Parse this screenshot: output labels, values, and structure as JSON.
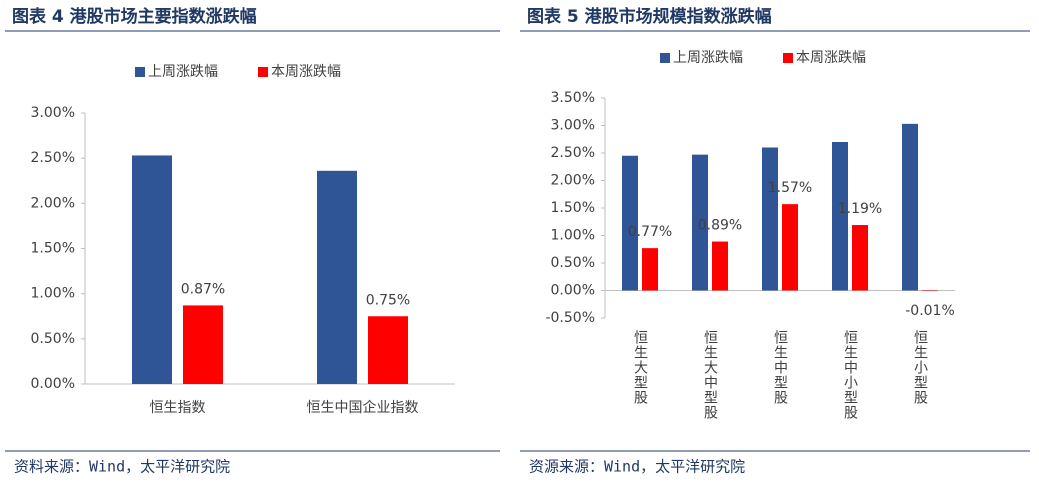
{
  "chart_data": [
    {
      "type": "bar",
      "title": "图表 4 港股市场主要指数涨跌幅",
      "categories": [
        "恒生指数",
        "恒生中国企业指数"
      ],
      "series": [
        {
          "name": "上周涨跌幅",
          "color": "#2f5597",
          "values": [
            2.53,
            2.36
          ]
        },
        {
          "name": "本周涨跌幅",
          "color": "#ff0000",
          "values": [
            0.87,
            0.75
          ],
          "value_labels": [
            "0.87%",
            "0.75%"
          ]
        }
      ],
      "ylim": [
        0,
        3
      ],
      "yticks": [
        {
          "value": 0,
          "label": "0.00%"
        },
        {
          "value": 0.5,
          "label": "0.50%"
        },
        {
          "value": 1,
          "label": "1.00%"
        },
        {
          "value": 1.5,
          "label": "1.50%"
        },
        {
          "value": 2,
          "label": "2.00%"
        },
        {
          "value": 2.5,
          "label": "2.50%"
        },
        {
          "value": 3,
          "label": "3.00%"
        }
      ],
      "legend": "top",
      "source": "资料来源：Wind，太平洋研究院"
    },
    {
      "type": "bar",
      "title": "图表 5 港股市场规模指数涨跌幅",
      "categories": [
        "恒生大型股",
        "恒生大中型股",
        "恒生中型股",
        "恒生中小型股",
        "恒生小型股"
      ],
      "series": [
        {
          "name": "上周涨跌幅",
          "color": "#2f5597",
          "values": [
            2.45,
            2.47,
            2.6,
            2.7,
            3.03
          ]
        },
        {
          "name": "本周涨跌幅",
          "color": "#ff0000",
          "values": [
            0.77,
            0.89,
            1.57,
            1.19,
            -0.01
          ],
          "value_labels": [
            "0.77%",
            "0.89%",
            "1.57%",
            "1.19%",
            "-0.01%"
          ]
        }
      ],
      "ylim": [
        -0.5,
        3.5
      ],
      "yticks": [
        {
          "value": -0.5,
          "label": "-0.50%"
        },
        {
          "value": 0,
          "label": "0.00%"
        },
        {
          "value": 0.5,
          "label": "0.50%"
        },
        {
          "value": 1,
          "label": "1.00%"
        },
        {
          "value": 1.5,
          "label": "1.50%"
        },
        {
          "value": 2,
          "label": "2.00%"
        },
        {
          "value": 2.5,
          "label": "2.50%"
        },
        {
          "value": 3,
          "label": "3.00%"
        },
        {
          "value": 3.5,
          "label": "3.50%"
        }
      ],
      "legend": "top",
      "source": "资源来源：Wind，太平洋研究院"
    }
  ]
}
